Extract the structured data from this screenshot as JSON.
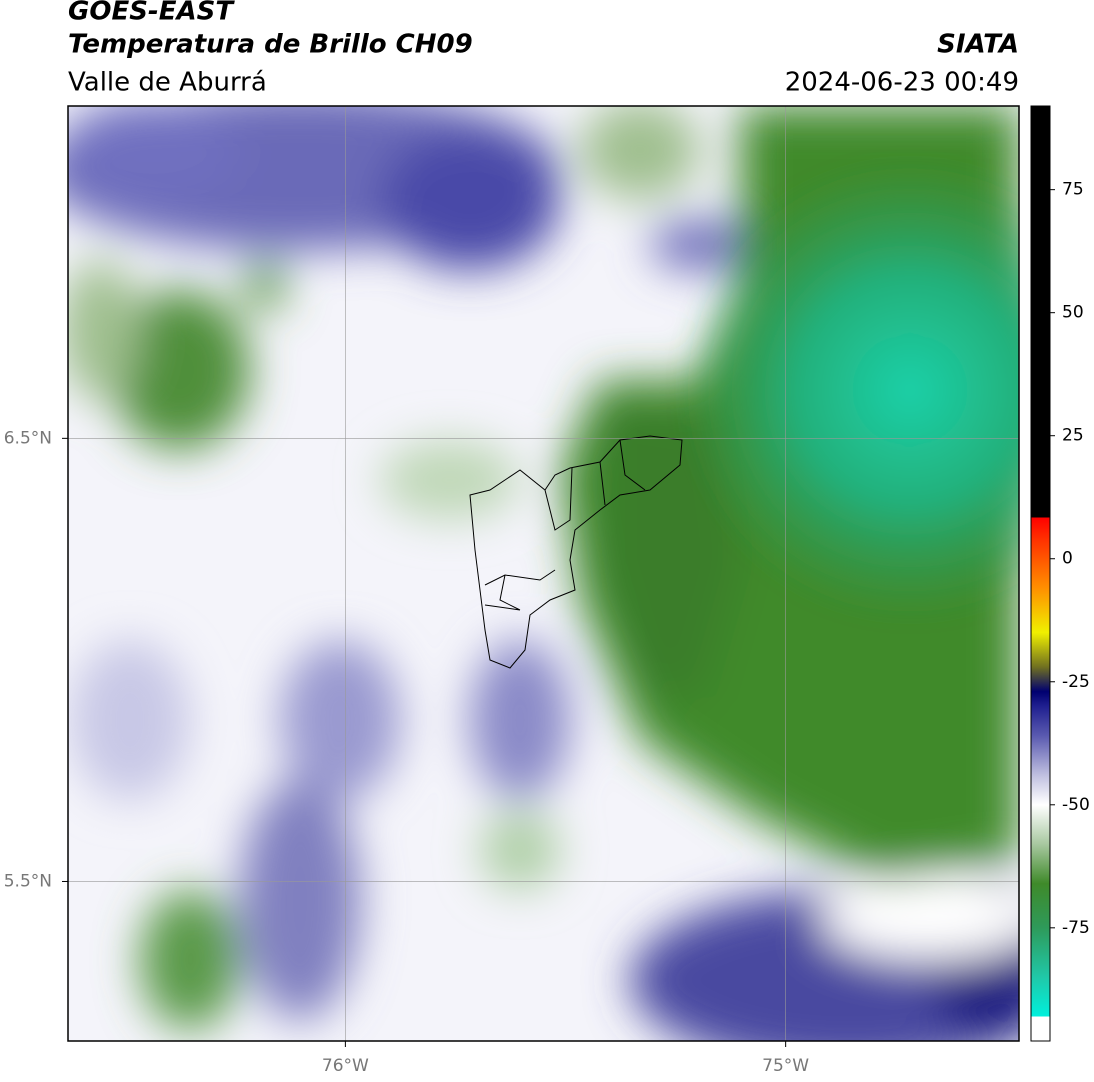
{
  "header": {
    "title": "GOES-EAST",
    "subtitle": "Temperatura de Brillo CH09",
    "region": "Valle de Aburrá",
    "source": "SIATA",
    "datetime": "2024-06-23 00:49"
  },
  "map": {
    "xlim": [
      -76.63,
      -74.47
    ],
    "ylim": [
      5.14,
      7.25
    ],
    "xticks": [
      {
        "value": -76,
        "label": "76°W"
      },
      {
        "value": -75,
        "label": "75°W"
      }
    ],
    "yticks": [
      {
        "value": 6.5,
        "label": "6.5°N"
      },
      {
        "value": 5.5,
        "label": "5.5°N"
      }
    ],
    "grid": true
  },
  "colorbar": {
    "lim": [
      -98,
      92
    ],
    "ticks": [
      75,
      50,
      25,
      0,
      -25,
      -50,
      -75
    ],
    "colormap": [
      {
        "value": -98,
        "color": "#ffffff"
      },
      {
        "value": -93,
        "color": "#ffffff"
      },
      {
        "value": -93,
        "color": "#00f0dc"
      },
      {
        "value": -85,
        "color": "#20c8a8"
      },
      {
        "value": -75,
        "color": "#2e9a5a"
      },
      {
        "value": -66,
        "color": "#3f8a2a"
      },
      {
        "value": -58,
        "color": "#a8c8a0"
      },
      {
        "value": -50,
        "color": "#ffffff"
      },
      {
        "value": -44,
        "color": "#c0c0e0"
      },
      {
        "value": -36,
        "color": "#5a5ab0"
      },
      {
        "value": -30,
        "color": "#202090"
      },
      {
        "value": -27,
        "color": "#000070"
      },
      {
        "value": -22,
        "color": "#707020"
      },
      {
        "value": -15,
        "color": "#f0f000"
      },
      {
        "value": -6,
        "color": "#ff9000"
      },
      {
        "value": 4,
        "color": "#ff3000"
      },
      {
        "value": 8.4,
        "color": "#ff0000"
      },
      {
        "value": 8.4,
        "color": "#000000"
      },
      {
        "value": 92,
        "color": "#000000"
      }
    ]
  }
}
